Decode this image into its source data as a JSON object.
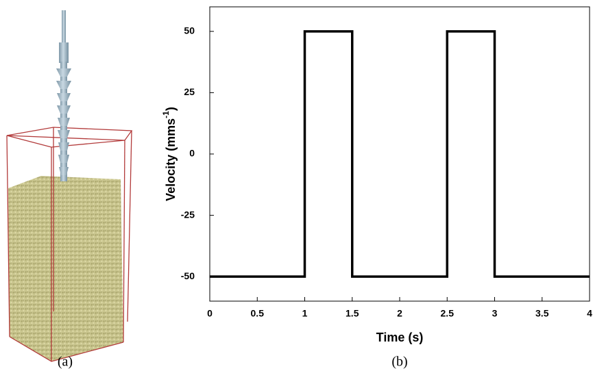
{
  "chart_data": {
    "type": "line",
    "x_label": "Time (s)",
    "y_label": "Velocity (mms",
    "y_label_superscript": "-1",
    "y_label_end": ")",
    "panel_a_label": "(a)",
    "panel_b_label": "(b)",
    "x": [
      0,
      1,
      1,
      1.5,
      1.5,
      2.5,
      2.5,
      3,
      3,
      4
    ],
    "series": [
      {
        "color": "#000000",
        "values": [
          -50,
          -50,
          50,
          50,
          -50,
          -50,
          50,
          50,
          -50,
          -50
        ]
      }
    ],
    "xlim": [
      0,
      4
    ],
    "ylim": [
      -60,
      60
    ],
    "xticks": [
      0,
      0.5,
      1,
      1.5,
      2,
      2.5,
      3,
      3.5,
      4
    ],
    "yticks": [
      50,
      25,
      0,
      -25,
      -50
    ],
    "grid": false
  }
}
